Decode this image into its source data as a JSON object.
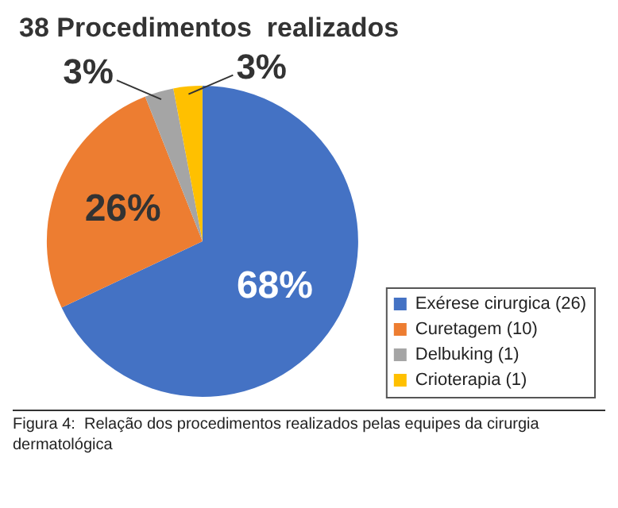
{
  "chart_data": {
    "type": "pie",
    "title": "38 Procedimentos  realizados",
    "categories": [
      "Exérese cirurgica (26)",
      "Curetagem (10)",
      "Delbuking (1)",
      "Crioterapia (1)"
    ],
    "values": [
      68,
      26,
      3,
      3
    ],
    "colors": [
      "#4472c4",
      "#ed7d31",
      "#a5a5a5",
      "#ffc000"
    ],
    "value_labels": [
      "68%",
      "26%",
      "3%",
      "3%"
    ],
    "legend": "bottom right",
    "annotations": [
      "Figura 4:  Relação dos procedimentos realizados pelas equipes da cirurgia dermatológica"
    ]
  }
}
